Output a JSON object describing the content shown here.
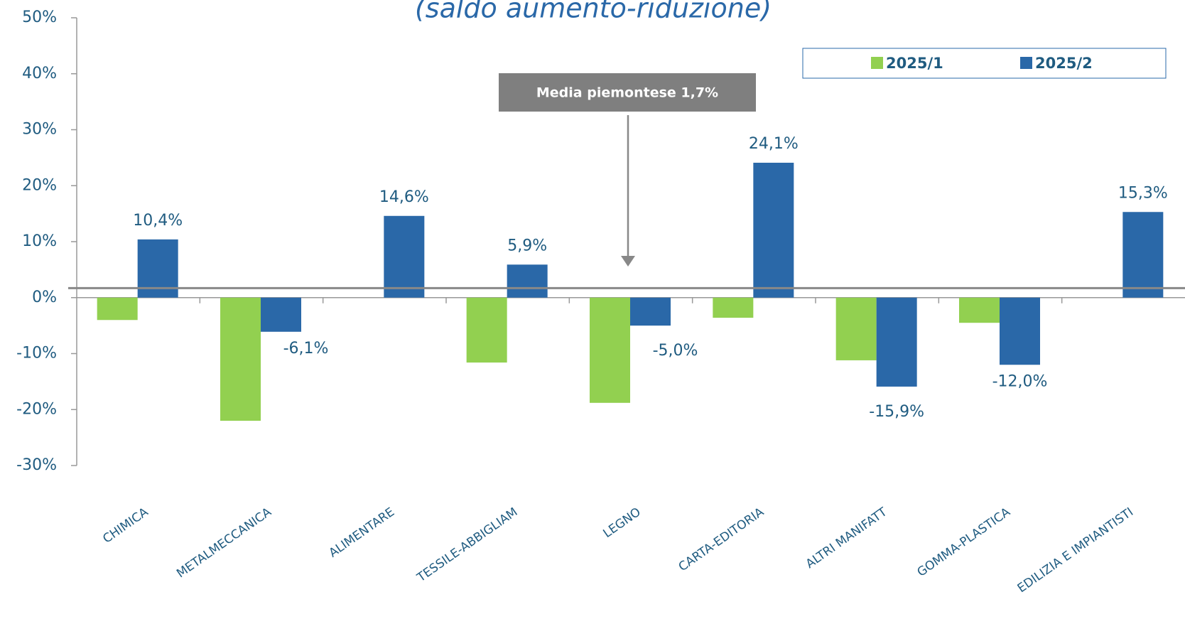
{
  "chart_data": {
    "type": "bar",
    "title": "(saldo aumento-riduzione)",
    "annotation": "Media piemontese 1,7%",
    "average": 1.7,
    "categories": [
      "CHIMICA",
      "METALMECCANICA",
      "ALIMENTARE",
      "TESSILE-ABBIGLIAM",
      "LEGNO",
      "CARTA-EDITORIA",
      "ALTRI MANIFATT",
      "GOMMA-PLASTICA",
      "EDILIZIA E IMPIANTISTI"
    ],
    "series": [
      {
        "name": "2025/1",
        "color": "#92d050",
        "values": [
          -4.0,
          -22.0,
          null,
          -11.6,
          -18.8,
          -3.6,
          -11.2,
          -4.5,
          null
        ]
      },
      {
        "name": "2025/2",
        "color": "#2a68a8",
        "values": [
          10.4,
          -6.1,
          14.6,
          5.9,
          -5.0,
          24.1,
          -15.9,
          -12.0,
          15.3
        ],
        "value_labels": [
          "10,4%",
          "-6,1%",
          "14,6%",
          "5,9%",
          "-5,0%",
          "24,1%",
          "-15,9%",
          "-12,0%",
          "15,3%"
        ]
      }
    ],
    "ylim": [
      -30,
      50
    ],
    "yticks": [
      {
        "value": -30,
        "label": "-30%"
      },
      {
        "value": -20,
        "label": "-20%"
      },
      {
        "value": -10,
        "label": "-10%"
      },
      {
        "value": 0,
        "label": "0%"
      },
      {
        "value": 10,
        "label": "10%"
      },
      {
        "value": 20,
        "label": "20%"
      },
      {
        "value": 30,
        "label": "30%"
      },
      {
        "value": 40,
        "label": "40%"
      },
      {
        "value": 50,
        "label": "50%"
      }
    ],
    "legend": "top-right"
  }
}
